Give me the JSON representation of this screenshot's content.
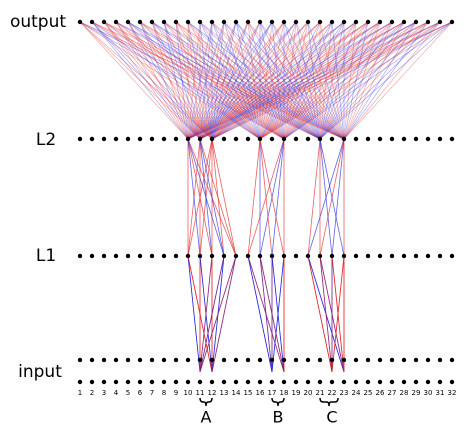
{
  "layers": [
    {
      "label": "output"
    },
    {
      "label": "L2"
    },
    {
      "label": "L1"
    },
    {
      "label": "input"
    }
  ],
  "input_positions": [
    1,
    2,
    3,
    4,
    5,
    6,
    7,
    8,
    9,
    10,
    11,
    12,
    13,
    14,
    15,
    16,
    17,
    18,
    19,
    20,
    21,
    22,
    23,
    24,
    25,
    26,
    27,
    28,
    29,
    30,
    31,
    32
  ],
  "groups": [
    "A",
    "B",
    "C"
  ]
}
